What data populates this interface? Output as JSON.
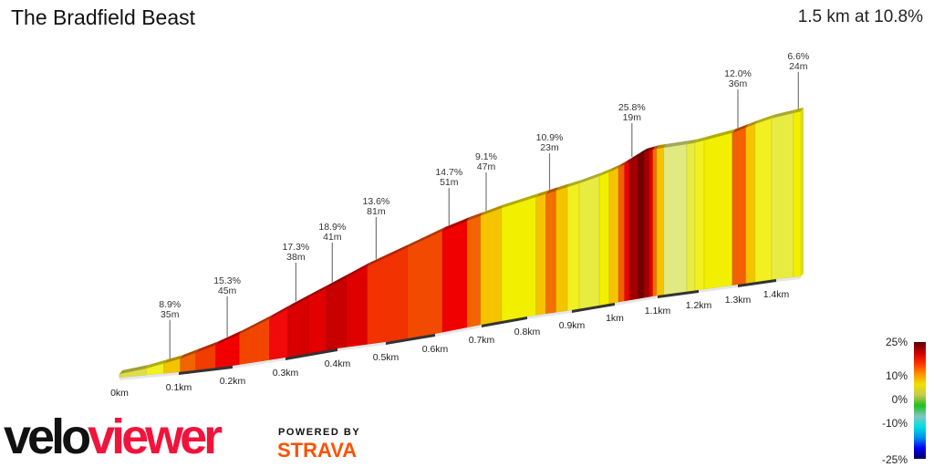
{
  "header": {
    "title": "The Bradfield Beast",
    "summary": "1.5 km at 10.8%"
  },
  "branding": {
    "logo_part1": "velo",
    "logo_part2": "viewer",
    "powered_by": "POWERED BY",
    "strava": "STRAVA"
  },
  "chart_data": {
    "type": "area",
    "title": "The Bradfield Beast",
    "xlabel": "",
    "ylabel": "",
    "xlim": [
      0,
      1.5
    ],
    "x_ticks": [
      "0km",
      "0.1km",
      "0.2km",
      "0.3km",
      "0.4km",
      "0.5km",
      "0.6km",
      "0.7km",
      "0.8km",
      "0.9km",
      "1km",
      "1.1km",
      "1.2km",
      "1.3km",
      "1.4km"
    ],
    "segments": [
      {
        "from_km": 0,
        "to_km": 0.045,
        "color": "#dede48"
      },
      {
        "from_km": 0.045,
        "to_km": 0.075,
        "color": "#f2f020"
      },
      {
        "from_km": 0.075,
        "to_km": 0.103,
        "color": "#f5c400"
      },
      {
        "from_km": 0.103,
        "to_km": 0.132,
        "color": "#f26400"
      },
      {
        "from_km": 0.132,
        "to_km": 0.169,
        "color": "#f23c00"
      },
      {
        "from_km": 0.169,
        "to_km": 0.213,
        "color": "#f00000"
      },
      {
        "from_km": 0.213,
        "to_km": 0.27,
        "color": "#f24600"
      },
      {
        "from_km": 0.27,
        "to_km": 0.305,
        "color": "#f00a0a"
      },
      {
        "from_km": 0.305,
        "to_km": 0.344,
        "color": "#d80000"
      },
      {
        "from_km": 0.344,
        "to_km": 0.379,
        "color": "#e20000"
      },
      {
        "from_km": 0.379,
        "to_km": 0.418,
        "color": "#c80000"
      },
      {
        "from_km": 0.418,
        "to_km": 0.462,
        "color": "#e00000"
      },
      {
        "from_km": 0.462,
        "to_km": 0.544,
        "color": "#f23200"
      },
      {
        "from_km": 0.544,
        "to_km": 0.616,
        "color": "#f24a00"
      },
      {
        "from_km": 0.616,
        "to_km": 0.669,
        "color": "#f00000"
      },
      {
        "from_km": 0.669,
        "to_km": 0.698,
        "color": "#f26400"
      },
      {
        "from_km": 0.698,
        "to_km": 0.744,
        "color": "#f5c400"
      },
      {
        "from_km": 0.744,
        "to_km": 0.82,
        "color": "#f2f000"
      },
      {
        "from_km": 0.82,
        "to_km": 0.842,
        "color": "#f5c400"
      },
      {
        "from_km": 0.842,
        "to_km": 0.865,
        "color": "#f27000"
      },
      {
        "from_km": 0.865,
        "to_km": 0.89,
        "color": "#f5c400"
      },
      {
        "from_km": 0.89,
        "to_km": 0.917,
        "color": "#f2f020"
      },
      {
        "from_km": 0.917,
        "to_km": 0.964,
        "color": "#e8ec40"
      },
      {
        "from_km": 0.964,
        "to_km": 0.987,
        "color": "#f2f000"
      },
      {
        "from_km": 0.987,
        "to_km": 1.009,
        "color": "#f5c400"
      },
      {
        "from_km": 1.009,
        "to_km": 1.023,
        "color": "#f26000"
      },
      {
        "from_km": 1.023,
        "to_km": 1.034,
        "color": "#f00000"
      },
      {
        "from_km": 1.034,
        "to_km": 1.055,
        "color": "#a00000"
      },
      {
        "from_km": 1.055,
        "to_km": 1.068,
        "color": "#700000"
      },
      {
        "from_km": 1.068,
        "to_km": 1.081,
        "color": "#a00000"
      },
      {
        "from_km": 1.081,
        "to_km": 1.089,
        "color": "#e00000"
      },
      {
        "from_km": 1.089,
        "to_km": 1.098,
        "color": "#f27000"
      },
      {
        "from_km": 1.098,
        "to_km": 1.115,
        "color": "#f5c400"
      },
      {
        "from_km": 1.115,
        "to_km": 1.171,
        "color": "#e0ea80"
      },
      {
        "from_km": 1.171,
        "to_km": 1.191,
        "color": "#e8ec40"
      },
      {
        "from_km": 1.191,
        "to_km": 1.214,
        "color": "#f2f020"
      },
      {
        "from_km": 1.214,
        "to_km": 1.286,
        "color": "#f2f000"
      },
      {
        "from_km": 1.286,
        "to_km": 1.321,
        "color": "#f26000"
      },
      {
        "from_km": 1.321,
        "to_km": 1.345,
        "color": "#f5c400"
      },
      {
        "from_km": 1.345,
        "to_km": 1.388,
        "color": "#f2f020"
      },
      {
        "from_km": 1.388,
        "to_km": 1.47,
        "color": "#e8ec40"
      },
      {
        "from_km": 1.47,
        "to_km": 1.5,
        "color": "#f2f000"
      }
    ],
    "annotations": [
      {
        "km": 0.085,
        "gradient": "8.9%",
        "length": "35m"
      },
      {
        "km": 0.19,
        "gradient": "15.3%",
        "length": "45m"
      },
      {
        "km": 0.32,
        "gradient": "17.3%",
        "length": "38m"
      },
      {
        "km": 0.39,
        "gradient": "18.9%",
        "length": "41m"
      },
      {
        "km": 0.48,
        "gradient": "13.6%",
        "length": "81m"
      },
      {
        "km": 0.63,
        "gradient": "14.7%",
        "length": "51m"
      },
      {
        "km": 0.71,
        "gradient": "9.1%",
        "length": "47m"
      },
      {
        "km": 0.85,
        "gradient": "10.9%",
        "length": "23m"
      },
      {
        "km": 1.04,
        "gradient": "25.8%",
        "length": "19m"
      },
      {
        "km": 1.3,
        "gradient": "12.0%",
        "length": "36m"
      },
      {
        "km": 1.49,
        "gradient": "6.6%",
        "length": "24m"
      }
    ],
    "legend": {
      "labels": [
        "25%",
        "10%",
        "0%",
        "-10%",
        "-25%"
      ],
      "colors": [
        "#5a0000",
        "#c80000",
        "#ff3000",
        "#ff9000",
        "#f0e000",
        "#c8c850",
        "#20c020",
        "#80c8c0",
        "#00e0e0",
        "#0090f0",
        "#0000f0",
        "#000060"
      ]
    }
  }
}
